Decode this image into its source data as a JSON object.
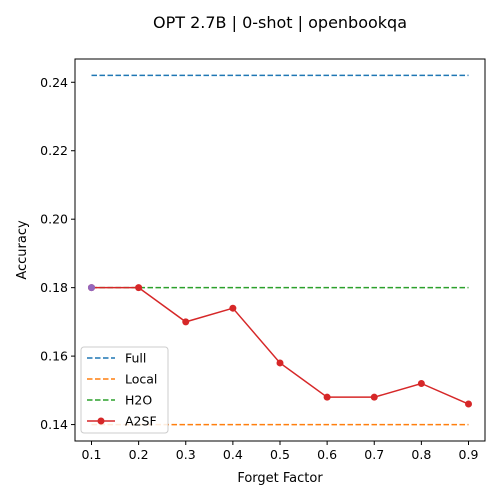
{
  "chart_data": {
    "type": "line",
    "title": "OPT 2.7B | 0-shot | openbookqa",
    "xlabel": "Forget Factor",
    "ylabel": "Accuracy",
    "x": [
      0.1,
      0.2,
      0.3,
      0.4,
      0.5,
      0.6,
      0.7,
      0.8,
      0.9
    ],
    "xticks": [
      "0.1",
      "0.2",
      "0.3",
      "0.4",
      "0.5",
      "0.6",
      "0.7",
      "0.8",
      "0.9"
    ],
    "yticks": [
      "0.14",
      "0.16",
      "0.18",
      "0.20",
      "0.22",
      "0.24"
    ],
    "xlim": [
      0.065,
      0.935
    ],
    "ylim": [
      0.1352,
      0.2468
    ],
    "legend_position": "lower-left",
    "series": [
      {
        "name": "Full",
        "style": "dashed",
        "color": "#1f77b4",
        "values": [
          0.242,
          0.242,
          0.242,
          0.242,
          0.242,
          0.242,
          0.242,
          0.242,
          0.242
        ]
      },
      {
        "name": "Local",
        "style": "dashed",
        "color": "#ff7f0e",
        "values": [
          0.14,
          0.14,
          0.14,
          0.14,
          0.14,
          0.14,
          0.14,
          0.14,
          0.14
        ]
      },
      {
        "name": "H2O",
        "style": "dashed",
        "color": "#2ca02c",
        "values": [
          0.18,
          0.18,
          0.18,
          0.18,
          0.18,
          0.18,
          0.18,
          0.18,
          0.18
        ]
      },
      {
        "name": "A2SF",
        "style": "solid-markers",
        "color": "#d62728",
        "values": [
          0.18,
          0.18,
          0.17,
          0.174,
          0.158,
          0.148,
          0.148,
          0.152,
          0.146
        ]
      }
    ],
    "highlight_point": {
      "x": 0.1,
      "y": 0.18,
      "color": "#9467bd"
    }
  }
}
